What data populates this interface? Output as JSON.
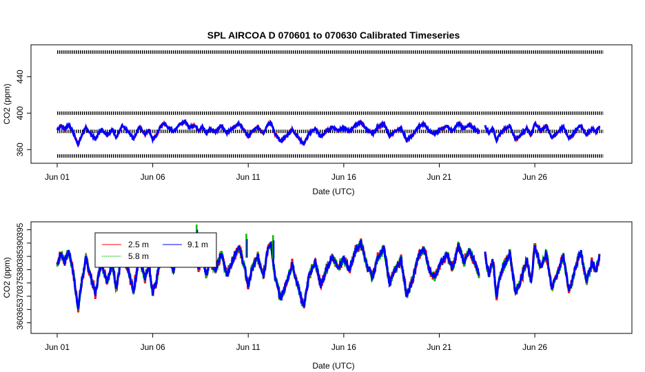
{
  "title": "SPL   AIRCOA  D    070601  to  070630   Calibrated Timeseries",
  "colors": {
    "s25": "#ff0000",
    "s58": "#00bb00",
    "s91": "#0000ff",
    "ref": "#000000",
    "bg": "#ffffff"
  },
  "chart_data": [
    {
      "type": "line",
      "name": "top-panel",
      "title": "SPL   AIRCOA  D    070601  to  070630   Calibrated Timeseries",
      "xlabel": "Date (UTC)",
      "ylabel": "CO2 (ppm)",
      "xlim": [
        0,
        29
      ],
      "ylim": [
        345,
        475
      ],
      "x_ticks": [
        {
          "value": 0,
          "label": "Jun 01"
        },
        {
          "value": 5,
          "label": "Jun 06"
        },
        {
          "value": 10,
          "label": "Jun 11"
        },
        {
          "value": 15,
          "label": "Jun 16"
        },
        {
          "value": 20,
          "label": "Jun 21"
        },
        {
          "value": 25,
          "label": "Jun 26"
        }
      ],
      "y_ticks": [
        {
          "value": 360,
          "label": "360"
        },
        {
          "value": 400,
          "label": "400"
        },
        {
          "value": 440,
          "label": "440"
        }
      ],
      "reference_lines": [
        {
          "name": "ref-high",
          "value": 467
        },
        {
          "name": "ref-400",
          "value": 400
        },
        {
          "name": "ref-380",
          "value": 380
        },
        {
          "name": "ref-low",
          "value": 353
        }
      ],
      "gaps": [
        [
          22.15,
          22.2
        ],
        [
          24.75,
          24.8
        ]
      ],
      "series": [
        {
          "name": "2.5 m",
          "color": "#ff0000"
        },
        {
          "name": "5.8 m",
          "color": "#00bb00"
        },
        {
          "name": "9.1 m",
          "color": "#0000ff"
        }
      ]
    },
    {
      "type": "line",
      "name": "bottom-panel",
      "xlabel": "Date (UTC)",
      "ylabel": "CO2 (ppm)",
      "xlim": [
        0,
        29
      ],
      "ylim": [
        356,
        398
      ],
      "x_ticks": [
        {
          "value": 0,
          "label": "Jun 01"
        },
        {
          "value": 5,
          "label": "Jun 06"
        },
        {
          "value": 10,
          "label": "Jun 11"
        },
        {
          "value": 15,
          "label": "Jun 16"
        },
        {
          "value": 20,
          "label": "Jun 21"
        },
        {
          "value": 25,
          "label": "Jun 26"
        }
      ],
      "y_ticks": [
        {
          "value": 360,
          "label": "360"
        },
        {
          "value": 365,
          "label": "365"
        },
        {
          "value": 370,
          "label": "370"
        },
        {
          "value": 375,
          "label": "375"
        },
        {
          "value": 380,
          "label": "380"
        },
        {
          "value": 385,
          "label": "385"
        },
        {
          "value": 390,
          "label": "390"
        },
        {
          "value": 395,
          "label": "395"
        }
      ],
      "legend": {
        "position": "top-left",
        "entries": [
          {
            "label": "2.5 m",
            "color": "#ff0000"
          },
          {
            "label": "5.8 m",
            "color": "#00bb00"
          },
          {
            "label": "9.1 m",
            "color": "#0000ff"
          }
        ]
      },
      "series": [
        {
          "name": "9.1 m",
          "color": "#0000ff",
          "x": [
            0,
            0.2,
            0.4,
            0.6,
            0.8,
            1.0,
            1.1,
            1.3,
            1.5,
            1.7,
            2.0,
            2.3,
            2.6,
            2.9,
            3.1,
            3.4,
            3.7,
            4.0,
            4.3,
            4.6,
            4.8,
            5.0,
            5.2,
            5.4,
            5.6,
            5.8,
            6.1,
            6.4,
            6.7,
            6.9,
            7.2,
            7.4,
            7.6,
            7.8,
            8.0,
            8.3,
            8.6,
            8.9,
            9.2,
            9.5,
            9.8,
            10.0,
            10.2,
            10.5,
            10.8,
            11.0,
            11.2,
            11.4,
            11.7,
            12.0,
            12.3,
            12.6,
            12.9,
            13.2,
            13.5,
            13.8,
            14.1,
            14.4,
            14.7,
            15.0,
            15.3,
            15.6,
            15.9,
            16.2,
            16.5,
            16.8,
            17.1,
            17.4,
            17.7,
            18.0,
            18.3,
            18.6,
            18.9,
            19.2,
            19.5,
            19.8,
            20.1,
            20.4,
            20.7,
            21.0,
            21.3,
            21.6,
            21.9,
            22.1,
            22.2,
            22.4,
            22.6,
            22.8,
            23.0,
            23.2,
            23.4,
            23.7,
            24.0,
            24.3,
            24.6,
            24.8,
            25.0,
            25.3,
            25.6,
            25.9,
            26.2,
            26.5,
            26.8,
            27.1,
            27.4,
            27.7,
            28.0,
            28.2,
            28.4
          ],
          "values": [
            382,
            386,
            383,
            387,
            381,
            370,
            366,
            376,
            384,
            379,
            371,
            383,
            376,
            382,
            373,
            386,
            380,
            372,
            385,
            377,
            382,
            371,
            376,
            385,
            389,
            384,
            380,
            388,
            391,
            384,
            387,
            381,
            385,
            378,
            383,
            380,
            386,
            378,
            384,
            389,
            381,
            374,
            380,
            385,
            378,
            387,
            390,
            377,
            369,
            375,
            382,
            374,
            366,
            378,
            383,
            374,
            380,
            385,
            381,
            384,
            380,
            387,
            390,
            382,
            377,
            385,
            388,
            375,
            380,
            384,
            370,
            376,
            385,
            388,
            380,
            377,
            383,
            386,
            380,
            389,
            383,
            387,
            382,
            378,
            null,
            386,
            378,
            384,
            370,
            378,
            382,
            386,
            371,
            377,
            384,
            375,
            389,
            381,
            386,
            373,
            379,
            385,
            372,
            380,
            387,
            376,
            383,
            379,
            386
          ]
        },
        {
          "name": "5.8 m",
          "color": "#00bb00",
          "spikes": [
            {
              "x": 7.3,
              "value": 397
            },
            {
              "x": 9.9,
              "value": 393.5
            },
            {
              "x": 11.3,
              "value": 393
            }
          ]
        }
      ]
    }
  ]
}
